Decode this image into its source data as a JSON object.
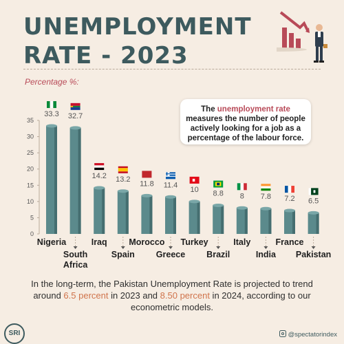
{
  "title": {
    "line1": "UNEMPLOYMENT",
    "line2": "RATE - 2023"
  },
  "y_axis_title": "Percentage %:",
  "callout": {
    "before": "The ",
    "highlight": "unemployment rate",
    "after": " measures the number of people actively looking for a job as a percentage of the labour force."
  },
  "footer": {
    "part1": "In the long-term, the Pakistan Unemployment Rate is projected to trend around ",
    "hl1": "6.5 percent",
    "part2": " in 2023 and ",
    "hl2": "8.50 percent",
    "part3": " in 2024, according to our econometric models."
  },
  "logo_text": "SRI",
  "handle": "@spectatorindex",
  "chart_data": {
    "type": "bar",
    "categories": [
      "Nigeria",
      "South Africa",
      "Iraq",
      "Spain",
      "Morocco",
      "Greece",
      "Turkey",
      "Brazil",
      "Italy",
      "India",
      "France",
      "Pakistan"
    ],
    "values": [
      33.3,
      32.7,
      14.2,
      13.2,
      11.8,
      11.4,
      10,
      8.8,
      8,
      7.8,
      7.2,
      6.5
    ],
    "value_labels": [
      "33.3",
      "32.7",
      "14.2",
      "13.2",
      "11.8",
      "11.4",
      "10",
      "8.8",
      "8",
      "7.8",
      "7.2",
      "6.5"
    ],
    "ylim": [
      0,
      35
    ],
    "yticks": [
      "0",
      "5",
      "10",
      "15",
      "20",
      "25",
      "30",
      "35"
    ],
    "bar_color": "#5b8a8c",
    "accent_color": "#b84a58"
  }
}
